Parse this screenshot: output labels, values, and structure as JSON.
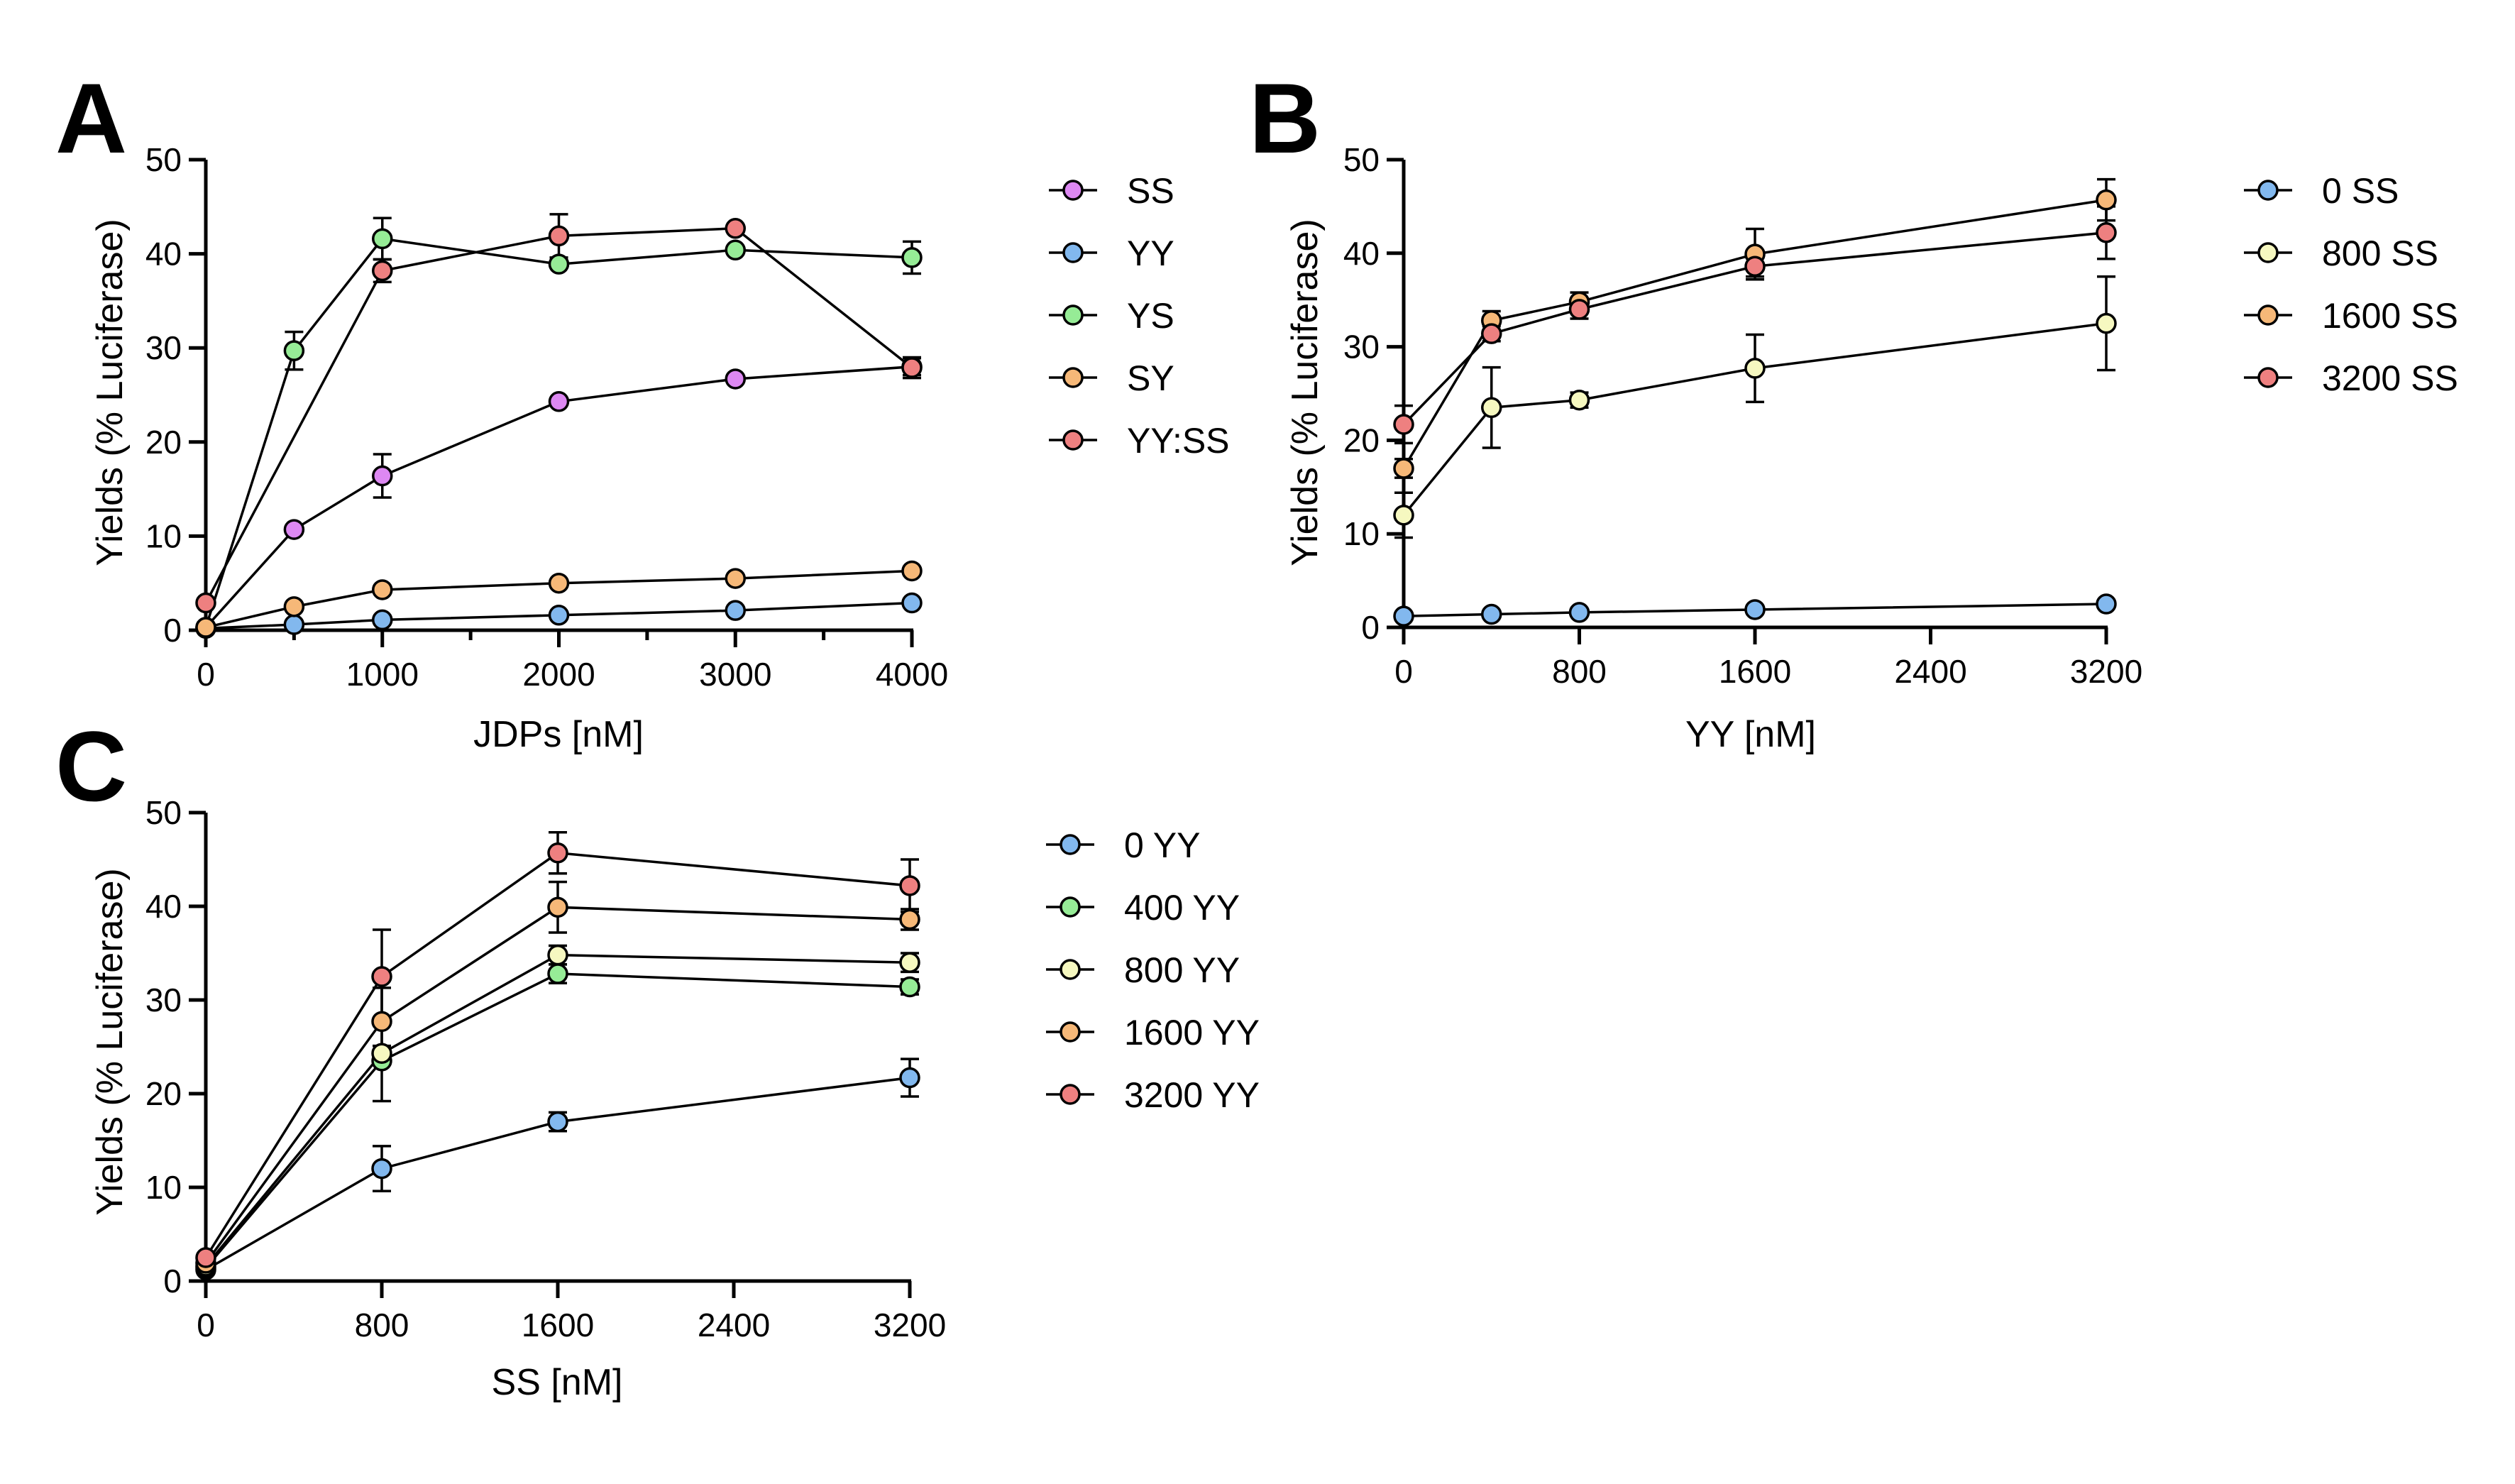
{
  "panels": [
    {
      "letter": "A",
      "ylabel": "Yields (% Luciferase)",
      "xlabel": "JDPs [nM]"
    },
    {
      "letter": "B",
      "ylabel": "Yields (% Luciferase)",
      "xlabel": "YY [nM]"
    },
    {
      "letter": "C",
      "ylabel": "Yields (% Luciferase)",
      "xlabel": "SS [nM]"
    }
  ],
  "colors": {
    "magenta": "#dd88f2",
    "blue": "#82b8ee",
    "green": "#96ec96",
    "orange": "#f6b878",
    "red": "#ee8080",
    "cream": "#f6f8c0"
  },
  "chart_data": [
    {
      "type": "line",
      "panel": "A",
      "xlabel": "JDPs [nM]",
      "ylabel": "Yields (% Luciferase)",
      "xlim": [
        0,
        4000
      ],
      "ylim": [
        0,
        50
      ],
      "xticks": [
        0,
        1000,
        2000,
        3000,
        4000
      ],
      "yticks": [
        0,
        10,
        20,
        30,
        40,
        50
      ],
      "legend_position": "right",
      "series": [
        {
          "name": "SS",
          "color": "#dd88f2",
          "x": [
            0,
            500,
            1000,
            2000,
            3000,
            4000
          ],
          "y": [
            0.3,
            10.7,
            16.4,
            24.3,
            26.7,
            28.0
          ],
          "err": [
            0,
            0,
            2.3,
            0,
            0,
            0.9
          ]
        },
        {
          "name": "YY",
          "color": "#82b8ee",
          "x": [
            0,
            500,
            1000,
            2000,
            3000,
            4000
          ],
          "y": [
            0.2,
            0.6,
            1.1,
            1.6,
            2.1,
            2.9
          ],
          "err": [
            0,
            0,
            0,
            0,
            0,
            0
          ]
        },
        {
          "name": "YS",
          "color": "#96ec96",
          "x": [
            0,
            500,
            1000,
            2000,
            3000,
            4000
          ],
          "y": [
            0.3,
            29.7,
            41.6,
            38.9,
            40.4,
            39.6
          ],
          "err": [
            0,
            2.0,
            2.2,
            0,
            0,
            1.7
          ]
        },
        {
          "name": "SY",
          "color": "#f6b878",
          "x": [
            0,
            500,
            1000,
            2000,
            3000,
            4000
          ],
          "y": [
            0.3,
            2.5,
            4.3,
            5.0,
            5.5,
            6.3
          ],
          "err": [
            0,
            0,
            0,
            0,
            0,
            0
          ]
        },
        {
          "name": "YY:SS",
          "color": "#ee8080",
          "x": [
            0,
            1000,
            2000,
            3000,
            4000
          ],
          "y": [
            2.9,
            38.2,
            41.9,
            42.7,
            27.9
          ],
          "err": [
            0,
            1.2,
            2.3,
            0,
            1.1
          ]
        }
      ]
    },
    {
      "type": "line",
      "panel": "B",
      "xlabel": "YY [nM]",
      "ylabel": "Yields (% Luciferase)",
      "xlim": [
        0,
        3200
      ],
      "ylim": [
        0,
        50
      ],
      "xticks": [
        0,
        800,
        1600,
        2400,
        3200
      ],
      "yticks": [
        0,
        10,
        20,
        30,
        40,
        50
      ],
      "legend_position": "right",
      "series": [
        {
          "name": "0 SS",
          "color": "#82b8ee",
          "x": [
            0,
            400,
            800,
            1600,
            3200
          ],
          "y": [
            1.2,
            1.4,
            1.6,
            1.9,
            2.5
          ],
          "err": [
            0,
            0,
            0,
            0,
            0
          ]
        },
        {
          "name": "800 SS",
          "color": "#f6f8c0",
          "x": [
            0,
            400,
            800,
            1600,
            3200
          ],
          "y": [
            12.0,
            23.5,
            24.3,
            27.7,
            32.5
          ],
          "err": [
            2.4,
            4.3,
            0.8,
            3.6,
            5.0
          ]
        },
        {
          "name": "1600 SS",
          "color": "#f6b878",
          "x": [
            0,
            400,
            800,
            1600,
            3200
          ],
          "y": [
            17.0,
            32.8,
            34.8,
            39.9,
            45.7
          ],
          "err": [
            1.0,
            1.0,
            1.0,
            2.7,
            2.2
          ]
        },
        {
          "name": "3200 SS",
          "color": "#ee8080",
          "x": [
            0,
            400,
            800,
            1600,
            3200
          ],
          "y": [
            21.7,
            31.4,
            34.0,
            38.6,
            42.2
          ],
          "err": [
            2.0,
            0.8,
            1.0,
            1.1,
            2.8
          ]
        }
      ]
    },
    {
      "type": "line",
      "panel": "C",
      "xlabel": "SS [nM]",
      "ylabel": "Yields (% Luciferase)",
      "xlim": [
        0,
        3200
      ],
      "ylim": [
        0,
        50
      ],
      "xticks": [
        0,
        800,
        1600,
        2400,
        3200
      ],
      "yticks": [
        0,
        10,
        20,
        30,
        40,
        50
      ],
      "legend_position": "right",
      "series": [
        {
          "name": "0 YY",
          "color": "#82b8ee",
          "x": [
            0,
            800,
            1600,
            3200
          ],
          "y": [
            1.2,
            12.0,
            17.0,
            21.7
          ],
          "err": [
            0,
            2.4,
            1.0,
            2.0
          ]
        },
        {
          "name": "400 YY",
          "color": "#96ec96",
          "x": [
            0,
            800,
            1600,
            3200
          ],
          "y": [
            1.4,
            23.5,
            32.8,
            31.4
          ],
          "err": [
            0,
            4.3,
            1.0,
            0.8
          ]
        },
        {
          "name": "800 YY",
          "color": "#f6f8c0",
          "x": [
            0,
            800,
            1600,
            3200
          ],
          "y": [
            1.6,
            24.3,
            34.8,
            34.0
          ],
          "err": [
            0,
            0.8,
            1.0,
            1.0
          ]
        },
        {
          "name": "1600 YY",
          "color": "#f6b878",
          "x": [
            0,
            800,
            1600,
            3200
          ],
          "y": [
            1.9,
            27.7,
            39.9,
            38.6
          ],
          "err": [
            0,
            3.6,
            2.7,
            1.1
          ]
        },
        {
          "name": "3200 YY",
          "color": "#ee8080",
          "x": [
            0,
            800,
            1600,
            3200
          ],
          "y": [
            2.5,
            32.5,
            45.7,
            42.2
          ],
          "err": [
            0,
            5.0,
            2.2,
            2.8
          ]
        }
      ]
    }
  ]
}
